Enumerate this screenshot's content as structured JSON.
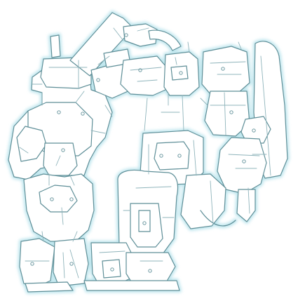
{
  "image": {
    "style": "line-art",
    "subject": "mechanical-robot-parts-glowing-outline",
    "colors": {
      "background": "#ffffff",
      "outline": "#5f8f98",
      "glow": "#bfe6ee",
      "fill": "#ffffff",
      "detail": "#8fb4bb"
    }
  }
}
